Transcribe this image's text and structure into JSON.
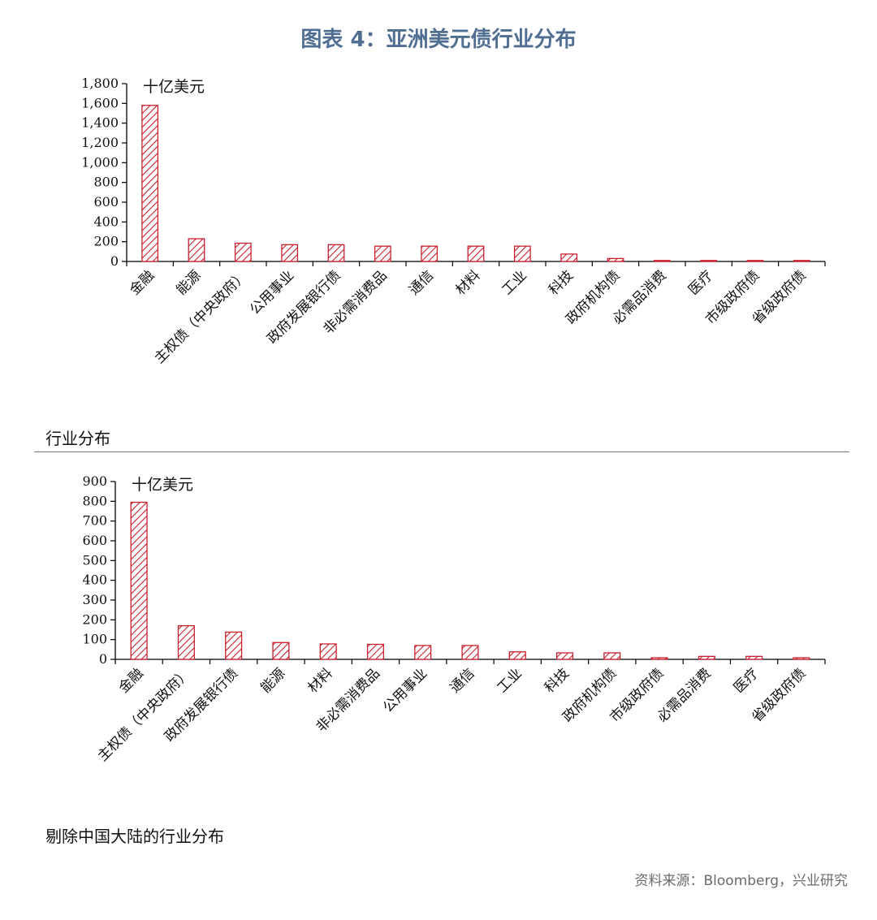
{
  "figure_title": "图表 4：亚洲美元债行业分布",
  "source": "资料来源：Bloomberg，兴业研究",
  "colors": {
    "title": "#4f6e92",
    "bar": "#c8202f"
  },
  "chart_data": [
    {
      "type": "bar",
      "caption": "行业分布",
      "unit": "十亿美元",
      "categories": [
        "金融",
        "能源",
        "主权债（中央政府）",
        "公用事业",
        "政府发展银行债",
        "非必需消费品",
        "通信",
        "材料",
        "工业",
        "科技",
        "政府机构债",
        "必需品消费",
        "医疗",
        "市级政府债",
        "省级政府债"
      ],
      "values": [
        1580,
        230,
        185,
        170,
        170,
        155,
        155,
        155,
        155,
        75,
        30,
        10,
        10,
        10,
        10
      ],
      "yticks": [
        "0",
        "200",
        "400",
        "600",
        "800",
        "1,000",
        "1,200",
        "1,400",
        "1,600",
        "1,800"
      ],
      "ylim": [
        0,
        1800
      ],
      "pattern": "diagonal-hatch",
      "grid": false,
      "legend": "none"
    },
    {
      "type": "bar",
      "caption": "剔除中国大陆的行业分布",
      "unit": "十亿美元",
      "categories": [
        "金融",
        "主权债（中央政府）",
        "政府发展银行债",
        "能源",
        "材料",
        "非必需消费品",
        "公用事业",
        "通信",
        "工业",
        "科技",
        "政府机构债",
        "市级政府债",
        "必需品消费",
        "医疗",
        "省级政府债"
      ],
      "values": [
        795,
        170,
        138,
        85,
        78,
        76,
        70,
        70,
        38,
        33,
        33,
        8,
        15,
        15,
        8
      ],
      "yticks": [
        "0",
        "100",
        "200",
        "300",
        "400",
        "500",
        "600",
        "700",
        "800",
        "900"
      ],
      "ylim": [
        0,
        900
      ],
      "pattern": "diagonal-hatch",
      "grid": false,
      "legend": "none"
    }
  ]
}
